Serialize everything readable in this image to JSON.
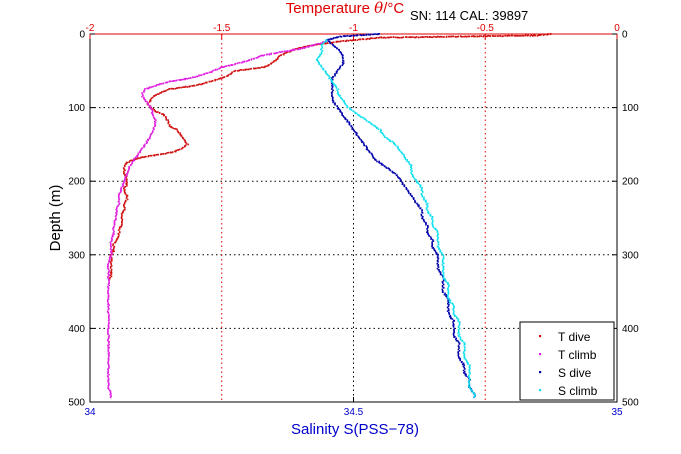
{
  "chart_data": {
    "type": "scatter",
    "info": "SN: 114  CAL: 39897",
    "top_axis": {
      "label_prefix": "Temperature ",
      "label_theta": "θ",
      "label_suffix": "/°C",
      "range": [
        -2,
        0
      ],
      "ticks": [
        -2,
        -1.5,
        -1,
        -0.5,
        0
      ],
      "tick_labels": [
        "-2",
        "-1.5",
        "-1",
        "-0.5",
        "0"
      ],
      "color": "#e00000"
    },
    "bottom_axis": {
      "label": "Salinity S(PSS−78)",
      "range": [
        34,
        35
      ],
      "ticks": [
        34,
        34.5,
        35
      ],
      "tick_labels": [
        "34",
        "34.5",
        "35"
      ],
      "color": "#0000cc"
    },
    "left_axis": {
      "label": "Depth (m)",
      "range": [
        0,
        500
      ],
      "ticks": [
        0,
        100,
        200,
        300,
        400,
        500
      ],
      "tick_labels": [
        "0",
        "100",
        "200",
        "300",
        "400",
        "500"
      ]
    },
    "right_axis": {
      "ticks": [
        0,
        100,
        200,
        300,
        400,
        500
      ],
      "tick_labels": [
        "0",
        "100",
        "200",
        "300",
        "400",
        "500"
      ]
    },
    "grid": true,
    "legend_position": "bottom-right",
    "series": [
      {
        "name": "T dive",
        "axis": "temperature",
        "color": "#d01010",
        "points": [
          [
            -0.25,
            0
          ],
          [
            -0.3,
            2
          ],
          [
            -0.9,
            5
          ],
          [
            -1.05,
            10
          ],
          [
            -1.15,
            15
          ],
          [
            -1.22,
            20
          ],
          [
            -1.25,
            25
          ],
          [
            -1.28,
            30
          ],
          [
            -1.29,
            35
          ],
          [
            -1.31,
            40
          ],
          [
            -1.34,
            45
          ],
          [
            -1.4,
            48
          ],
          [
            -1.45,
            50
          ],
          [
            -1.47,
            55
          ],
          [
            -1.5,
            60
          ],
          [
            -1.55,
            65
          ],
          [
            -1.6,
            70
          ],
          [
            -1.7,
            75
          ],
          [
            -1.73,
            80
          ],
          [
            -1.76,
            85
          ],
          [
            -1.77,
            90
          ],
          [
            -1.78,
            95
          ],
          [
            -1.77,
            100
          ],
          [
            -1.75,
            105
          ],
          [
            -1.72,
            110
          ],
          [
            -1.71,
            115
          ],
          [
            -1.7,
            120
          ],
          [
            -1.7,
            125
          ],
          [
            -1.67,
            130
          ],
          [
            -1.66,
            135
          ],
          [
            -1.65,
            140
          ],
          [
            -1.64,
            145
          ],
          [
            -1.63,
            150
          ],
          [
            -1.65,
            155
          ],
          [
            -1.68,
            160
          ],
          [
            -1.72,
            163
          ],
          [
            -1.78,
            166
          ],
          [
            -1.83,
            170
          ],
          [
            -1.86,
            175
          ],
          [
            -1.87,
            180
          ],
          [
            -1.87,
            185
          ],
          [
            -1.87,
            190
          ],
          [
            -1.86,
            195
          ],
          [
            -1.86,
            200
          ],
          [
            -1.86,
            205
          ],
          [
            -1.87,
            210
          ],
          [
            -1.87,
            215
          ],
          [
            -1.86,
            220
          ],
          [
            -1.86,
            225
          ],
          [
            -1.87,
            230
          ],
          [
            -1.87,
            235
          ],
          [
            -1.87,
            240
          ],
          [
            -1.88,
            245
          ],
          [
            -1.88,
            250
          ],
          [
            -1.88,
            255
          ],
          [
            -1.88,
            260
          ],
          [
            -1.89,
            265
          ],
          [
            -1.89,
            270
          ],
          [
            -1.89,
            275
          ],
          [
            -1.9,
            280
          ],
          [
            -1.91,
            285
          ],
          [
            -1.91,
            290
          ],
          [
            -1.91,
            295
          ],
          [
            -1.92,
            300
          ],
          [
            -1.92,
            305
          ],
          [
            -1.92,
            310
          ],
          [
            -1.92,
            315
          ],
          [
            -1.92,
            320
          ],
          [
            -1.92,
            325
          ],
          [
            -1.92,
            330
          ],
          [
            -1.93,
            335
          ]
        ]
      },
      {
        "name": "T climb",
        "axis": "temperature",
        "color": "#e020e0",
        "points": [
          [
            -1.1,
            10
          ],
          [
            -1.15,
            15
          ],
          [
            -1.2,
            20
          ],
          [
            -1.25,
            23
          ],
          [
            -1.3,
            26
          ],
          [
            -1.35,
            30
          ],
          [
            -1.38,
            34
          ],
          [
            -1.42,
            38
          ],
          [
            -1.46,
            42
          ],
          [
            -1.5,
            45
          ],
          [
            -1.53,
            50
          ],
          [
            -1.57,
            55
          ],
          [
            -1.62,
            60
          ],
          [
            -1.7,
            65
          ],
          [
            -1.75,
            70
          ],
          [
            -1.79,
            75
          ],
          [
            -1.8,
            80
          ],
          [
            -1.8,
            85
          ],
          [
            -1.79,
            90
          ],
          [
            -1.78,
            95
          ],
          [
            -1.77,
            100
          ],
          [
            -1.76,
            110
          ],
          [
            -1.75,
            120
          ],
          [
            -1.76,
            130
          ],
          [
            -1.77,
            140
          ],
          [
            -1.79,
            150
          ],
          [
            -1.81,
            160
          ],
          [
            -1.83,
            170
          ],
          [
            -1.85,
            180
          ],
          [
            -1.86,
            190
          ],
          [
            -1.87,
            200
          ],
          [
            -1.88,
            210
          ],
          [
            -1.89,
            220
          ],
          [
            -1.89,
            230
          ],
          [
            -1.9,
            240
          ],
          [
            -1.9,
            250
          ],
          [
            -1.91,
            260
          ],
          [
            -1.91,
            270
          ],
          [
            -1.92,
            280
          ],
          [
            -1.92,
            290
          ],
          [
            -1.92,
            300
          ],
          [
            -1.93,
            310
          ],
          [
            -1.93,
            320
          ],
          [
            -1.93,
            330
          ],
          [
            -1.93,
            340
          ],
          [
            -1.93,
            350
          ],
          [
            -1.93,
            360
          ],
          [
            -1.93,
            370
          ],
          [
            -1.93,
            380
          ],
          [
            -1.93,
            390
          ],
          [
            -1.93,
            400
          ],
          [
            -1.93,
            410
          ],
          [
            -1.93,
            420
          ],
          [
            -1.93,
            430
          ],
          [
            -1.93,
            440
          ],
          [
            -1.93,
            450
          ],
          [
            -1.93,
            460
          ],
          [
            -1.93,
            470
          ],
          [
            -1.93,
            480
          ],
          [
            -1.92,
            490
          ],
          [
            -1.92,
            495
          ]
        ]
      },
      {
        "name": "S dive",
        "axis": "salinity",
        "color": "#0000aa",
        "points": [
          [
            34.55,
            0
          ],
          [
            34.48,
            3
          ],
          [
            34.45,
            8
          ],
          [
            34.46,
            15
          ],
          [
            34.47,
            20
          ],
          [
            34.48,
            30
          ],
          [
            34.48,
            40
          ],
          [
            34.47,
            50
          ],
          [
            34.46,
            60
          ],
          [
            34.46,
            70
          ],
          [
            34.46,
            80
          ],
          [
            34.46,
            90
          ],
          [
            34.47,
            100
          ],
          [
            34.48,
            110
          ],
          [
            34.49,
            120
          ],
          [
            34.5,
            130
          ],
          [
            34.51,
            140
          ],
          [
            34.52,
            150
          ],
          [
            34.53,
            160
          ],
          [
            34.54,
            170
          ],
          [
            34.56,
            180
          ],
          [
            34.58,
            190
          ],
          [
            34.59,
            200
          ],
          [
            34.6,
            210
          ],
          [
            34.61,
            220
          ],
          [
            34.62,
            230
          ],
          [
            34.63,
            240
          ],
          [
            34.63,
            250
          ],
          [
            34.64,
            260
          ],
          [
            34.64,
            270
          ],
          [
            34.65,
            280
          ],
          [
            34.65,
            290
          ],
          [
            34.66,
            300
          ],
          [
            34.66,
            310
          ],
          [
            34.66,
            320
          ],
          [
            34.67,
            330
          ],
          [
            34.67,
            340
          ],
          [
            34.67,
            350
          ],
          [
            34.68,
            360
          ],
          [
            34.68,
            370
          ],
          [
            34.68,
            380
          ],
          [
            34.69,
            390
          ],
          [
            34.69,
            400
          ],
          [
            34.69,
            410
          ],
          [
            34.7,
            420
          ],
          [
            34.7,
            430
          ],
          [
            34.7,
            440
          ],
          [
            34.71,
            450
          ],
          [
            34.71,
            460
          ],
          [
            34.72,
            470
          ],
          [
            34.72,
            480
          ],
          [
            34.73,
            490
          ],
          [
            34.73,
            495
          ]
        ]
      },
      {
        "name": "S climb",
        "axis": "salinity",
        "color": "#10e0f0",
        "points": [
          [
            34.45,
            8
          ],
          [
            34.44,
            15
          ],
          [
            34.44,
            25
          ],
          [
            34.43,
            35
          ],
          [
            34.44,
            45
          ],
          [
            34.45,
            55
          ],
          [
            34.46,
            65
          ],
          [
            34.47,
            75
          ],
          [
            34.47,
            80
          ],
          [
            34.48,
            90
          ],
          [
            34.49,
            100
          ],
          [
            34.51,
            110
          ],
          [
            34.53,
            120
          ],
          [
            34.55,
            130
          ],
          [
            34.56,
            140
          ],
          [
            34.58,
            150
          ],
          [
            34.59,
            160
          ],
          [
            34.6,
            170
          ],
          [
            34.61,
            180
          ],
          [
            34.61,
            190
          ],
          [
            34.62,
            200
          ],
          [
            34.63,
            210
          ],
          [
            34.63,
            220
          ],
          [
            34.64,
            230
          ],
          [
            34.64,
            240
          ],
          [
            34.65,
            250
          ],
          [
            34.65,
            260
          ],
          [
            34.66,
            270
          ],
          [
            34.66,
            280
          ],
          [
            34.66,
            290
          ],
          [
            34.67,
            300
          ],
          [
            34.67,
            310
          ],
          [
            34.67,
            320
          ],
          [
            34.67,
            330
          ],
          [
            34.68,
            340
          ],
          [
            34.68,
            350
          ],
          [
            34.68,
            360
          ],
          [
            34.69,
            370
          ],
          [
            34.69,
            380
          ],
          [
            34.7,
            390
          ],
          [
            34.7,
            400
          ],
          [
            34.7,
            410
          ],
          [
            34.71,
            420
          ],
          [
            34.71,
            430
          ],
          [
            34.71,
            440
          ],
          [
            34.72,
            450
          ],
          [
            34.72,
            460
          ],
          [
            34.72,
            470
          ],
          [
            34.72,
            480
          ],
          [
            34.73,
            490
          ],
          [
            34.73,
            495
          ]
        ]
      }
    ]
  }
}
